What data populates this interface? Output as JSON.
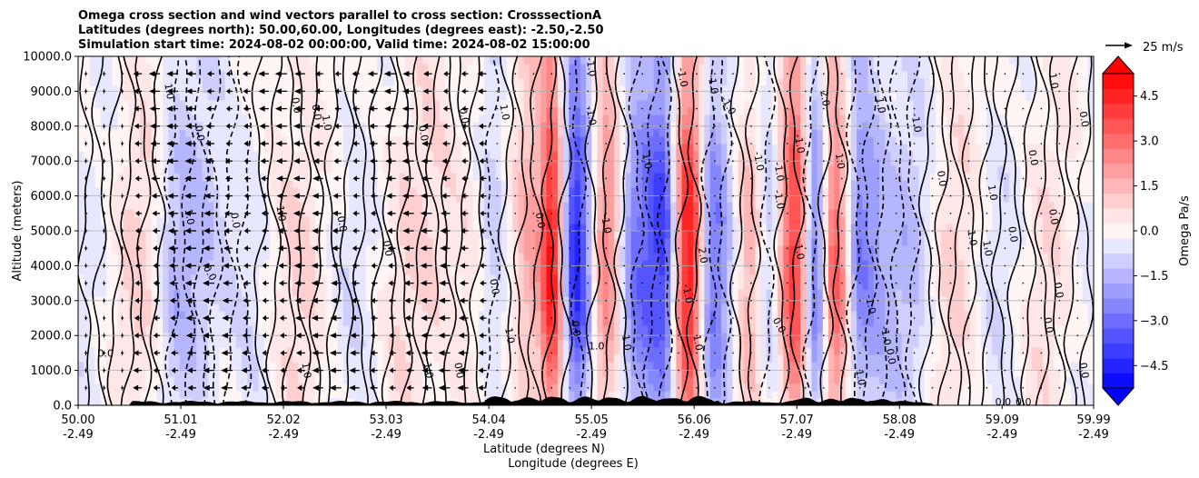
{
  "chart_data": {
    "type": "heatmap",
    "title_lines": [
      "Omega cross section and wind vectors parallel to cross section: CrosssectionA",
      "Latitudes (degrees north): 50.00,60.00, Longitudes (degrees east): -2.50,-2.50",
      "Simulation start time: 2024-08-02 00:00:00, Valid time: 2024-08-02 15:00:00"
    ],
    "ylabel": "Altitude (meters)",
    "xlabel_lines": [
      "Latitude (degrees N)",
      "Longitude (degrees E)"
    ],
    "ylim": [
      0,
      10000
    ],
    "yticks": [
      0,
      1000,
      2000,
      3000,
      4000,
      5000,
      6000,
      7000,
      8000,
      9000,
      10000
    ],
    "ytick_labels": [
      "0.0",
      "1000.0",
      "2000.0",
      "3000.0",
      "4000.0",
      "5000.0",
      "6000.0",
      "7000.0",
      "8000.0",
      "9000.0",
      "10000.0"
    ],
    "xlim": [
      50.0,
      59.99
    ],
    "xticks": [
      50.0,
      51.01,
      52.02,
      53.03,
      54.04,
      55.05,
      56.06,
      57.07,
      58.08,
      59.09,
      59.99
    ],
    "xtick_lat_labels": [
      "50.00",
      "51.01",
      "52.02",
      "53.03",
      "54.04",
      "55.05",
      "56.06",
      "57.07",
      "58.08",
      "59.09",
      "59.99"
    ],
    "xtick_lon_labels": [
      "-2.49",
      "-2.49",
      "-2.49",
      "-2.49",
      "-2.49",
      "-2.49",
      "-2.49",
      "-2.49",
      "-2.49",
      "-2.49",
      "-2.49"
    ],
    "grid": "horizontal",
    "colorbar": {
      "label": "Omega Pa/s",
      "vmin": -5.25,
      "vmax": 5.25,
      "step": 0.5,
      "ticks": [
        -4.5,
        -3.0,
        -1.5,
        0.0,
        1.5,
        3.0,
        4.5
      ],
      "tick_labels": [
        "−4.5",
        "−3.0",
        "−1.5",
        "0.0",
        "1.5",
        "3.0",
        "4.5"
      ],
      "extend": "both",
      "negative_color": "#0000ff",
      "positive_color": "#ff0000"
    },
    "wind_key": {
      "label": "25 m/s",
      "speed": 25
    },
    "wind_vectors": {
      "direction": "southward (toward smaller latitude)",
      "strong_region_lat": [
        50.4,
        54.1
      ],
      "levels_m": [
        500,
        1000,
        1500,
        2000,
        2500,
        3000,
        3500,
        4000,
        4500,
        5000,
        5500,
        6000,
        6500,
        7000,
        7500,
        8000,
        8500,
        9000,
        9500
      ]
    },
    "omega_structure": [
      {
        "lat": 50.0,
        "omega": -0.3
      },
      {
        "lat": 50.6,
        "omega": 0.6
      },
      {
        "lat": 51.0,
        "omega": -1.2
      },
      {
        "lat": 51.6,
        "omega": -0.8
      },
      {
        "lat": 52.1,
        "omega": 0.9
      },
      {
        "lat": 52.6,
        "omega": -0.5
      },
      {
        "lat": 53.2,
        "omega": 0.5
      },
      {
        "lat": 53.8,
        "omega": 0.7
      },
      {
        "lat": 54.1,
        "omega": -1.0
      },
      {
        "lat": 54.5,
        "omega": 1.8
      },
      {
        "lat": 54.65,
        "omega": 4.5
      },
      {
        "lat": 54.9,
        "omega": -4.0
      },
      {
        "lat": 55.2,
        "omega": 2.0
      },
      {
        "lat": 55.5,
        "omega": -2.5
      },
      {
        "lat": 55.75,
        "omega": -3.5
      },
      {
        "lat": 56.0,
        "omega": 4.0
      },
      {
        "lat": 56.25,
        "omega": -2.5
      },
      {
        "lat": 56.6,
        "omega": 1.5
      },
      {
        "lat": 56.8,
        "omega": -1.0
      },
      {
        "lat": 57.05,
        "omega": 3.5
      },
      {
        "lat": 57.25,
        "omega": -2.0
      },
      {
        "lat": 57.45,
        "omega": 3.0
      },
      {
        "lat": 57.7,
        "omega": -2.5
      },
      {
        "lat": 58.1,
        "omega": -1.2
      },
      {
        "lat": 58.6,
        "omega": 0.6
      },
      {
        "lat": 59.0,
        "omega": -0.4
      },
      {
        "lat": 59.5,
        "omega": 0.4
      },
      {
        "lat": 59.99,
        "omega": -0.2
      }
    ],
    "contour_labels": [
      {
        "text": "0.0",
        "lat": 50.27,
        "alt": 1500,
        "angle": 0
      },
      {
        "text": "1.0",
        "lat": 50.9,
        "alt": 9000,
        "angle": 80
      },
      {
        "text": "0.0",
        "lat": 51.2,
        "alt": 7800,
        "angle": 80
      },
      {
        "text": "1.0",
        "lat": 51.1,
        "alt": 5400,
        "angle": 80
      },
      {
        "text": "0.0",
        "lat": 51.3,
        "alt": 3800,
        "angle": 60
      },
      {
        "text": "0.0",
        "lat": 51.55,
        "alt": 5300,
        "angle": 80
      },
      {
        "text": "1.0",
        "lat": 52.0,
        "alt": 5500,
        "angle": 80
      },
      {
        "text": "0.0",
        "lat": 52.15,
        "alt": 8600,
        "angle": 80
      },
      {
        "text": "1.0",
        "lat": 52.25,
        "alt": 1000,
        "angle": 80
      },
      {
        "text": "0.0",
        "lat": 52.35,
        "alt": 8400,
        "angle": 80
      },
      {
        "text": "1.0",
        "lat": 52.45,
        "alt": 8100,
        "angle": 80
      },
      {
        "text": "0.0",
        "lat": 52.6,
        "alt": 5200,
        "angle": 80
      },
      {
        "text": "0.0",
        "lat": 53.05,
        "alt": 4500,
        "angle": 80
      },
      {
        "text": "0.0",
        "lat": 53.4,
        "alt": 7800,
        "angle": 80
      },
      {
        "text": "1.0",
        "lat": 53.45,
        "alt": 1000,
        "angle": 80
      },
      {
        "text": "0.0",
        "lat": 53.75,
        "alt": 1000,
        "angle": 80
      },
      {
        "text": "0.0",
        "lat": 53.8,
        "alt": 8300,
        "angle": 80
      },
      {
        "text": "1.0",
        "lat": 54.2,
        "alt": 8400,
        "angle": 80
      },
      {
        "text": "0.0",
        "lat": 54.1,
        "alt": 3400,
        "angle": 80
      },
      {
        "text": "1.0",
        "lat": 54.25,
        "alt": 2000,
        "angle": 80
      },
      {
        "text": "0.0",
        "lat": 54.55,
        "alt": 5300,
        "angle": 80
      },
      {
        "text": "0.0",
        "lat": 54.9,
        "alt": 2200,
        "angle": 80
      },
      {
        "text": "-1.0",
        "lat": 55.05,
        "alt": 9700,
        "angle": 80
      },
      {
        "text": "-1.0",
        "lat": 55.05,
        "alt": 8300,
        "angle": 80
      },
      {
        "text": "-1.0",
        "lat": 55.2,
        "alt": 5200,
        "angle": 80
      },
      {
        "text": "1.0",
        "lat": 55.1,
        "alt": 1700,
        "angle": 0
      },
      {
        "text": "1.0",
        "lat": 55.4,
        "alt": 1800,
        "angle": 80
      },
      {
        "text": "1.0",
        "lat": 55.6,
        "alt": 7000,
        "angle": 80
      },
      {
        "text": "-1.0",
        "lat": 55.95,
        "alt": 9400,
        "angle": 80
      },
      {
        "text": "-1.0",
        "lat": 56.25,
        "alt": 9200,
        "angle": 80
      },
      {
        "text": "-1.0",
        "lat": 56.4,
        "alt": 8600,
        "angle": 60
      },
      {
        "text": "2.0",
        "lat": 56.15,
        "alt": 4300,
        "angle": 80
      },
      {
        "text": "-1.0",
        "lat": 56.0,
        "alt": 3200,
        "angle": 80
      },
      {
        "text": "1.0",
        "lat": 56.1,
        "alt": 1800,
        "angle": 80
      },
      {
        "text": "-1.0",
        "lat": 56.7,
        "alt": 7000,
        "angle": 80
      },
      {
        "text": "-1.0",
        "lat": 56.9,
        "alt": 6700,
        "angle": 80
      },
      {
        "text": "-1.0",
        "lat": 56.9,
        "alt": 5900,
        "angle": 80
      },
      {
        "text": "0.0",
        "lat": 56.9,
        "alt": 2300,
        "angle": 60
      },
      {
        "text": "1.0",
        "lat": 57.1,
        "alt": 4400,
        "angle": 80
      },
      {
        "text": "-1.0",
        "lat": 57.1,
        "alt": 7500,
        "angle": 80
      },
      {
        "text": "2.0",
        "lat": 57.35,
        "alt": 8800,
        "angle": 80
      },
      {
        "text": "1.0",
        "lat": 57.5,
        "alt": 7000,
        "angle": 80
      },
      {
        "text": "1.0",
        "lat": 57.9,
        "alt": 8600,
        "angle": 80
      },
      {
        "text": "-1.0",
        "lat": 58.25,
        "alt": 8100,
        "angle": 80
      },
      {
        "text": "-1.0",
        "lat": 57.8,
        "alt": 2900,
        "angle": 80
      },
      {
        "text": "-1.0",
        "lat": 57.95,
        "alt": 2000,
        "angle": 80
      },
      {
        "text": "1.0",
        "lat": 57.7,
        "alt": 800,
        "angle": 80
      },
      {
        "text": "0.0",
        "lat": 58.0,
        "alt": 1400,
        "angle": 80
      },
      {
        "text": "1.0",
        "lat": 58.8,
        "alt": 4800,
        "angle": 80
      },
      {
        "text": "1.0",
        "lat": 58.95,
        "alt": 4500,
        "angle": 80
      },
      {
        "text": "0.0",
        "lat": 58.5,
        "alt": 6500,
        "angle": 80
      },
      {
        "text": "1.0",
        "lat": 59.0,
        "alt": 6100,
        "angle": 80
      },
      {
        "text": "0.0",
        "lat": 59.2,
        "alt": 4900,
        "angle": 80
      },
      {
        "text": "1.0",
        "lat": 59.6,
        "alt": 9300,
        "angle": 80
      },
      {
        "text": "0.0",
        "lat": 59.4,
        "alt": 7100,
        "angle": 80
      },
      {
        "text": "0.0",
        "lat": 59.65,
        "alt": 3300,
        "angle": 80
      },
      {
        "text": "0.0",
        "lat": 59.55,
        "alt": 2300,
        "angle": 80
      },
      {
        "text": "0.0",
        "lat": 59.6,
        "alt": 5400,
        "angle": 80
      },
      {
        "text": "0.0",
        "lat": 59.9,
        "alt": 8200,
        "angle": 80
      },
      {
        "text": "0.0",
        "lat": 59.9,
        "alt": 1000,
        "angle": 80
      },
      {
        "text": "0.0",
        "lat": 59.1,
        "alt": 100,
        "angle": 0
      },
      {
        "text": "0.0",
        "lat": 59.3,
        "alt": 100,
        "angle": 0
      }
    ]
  }
}
